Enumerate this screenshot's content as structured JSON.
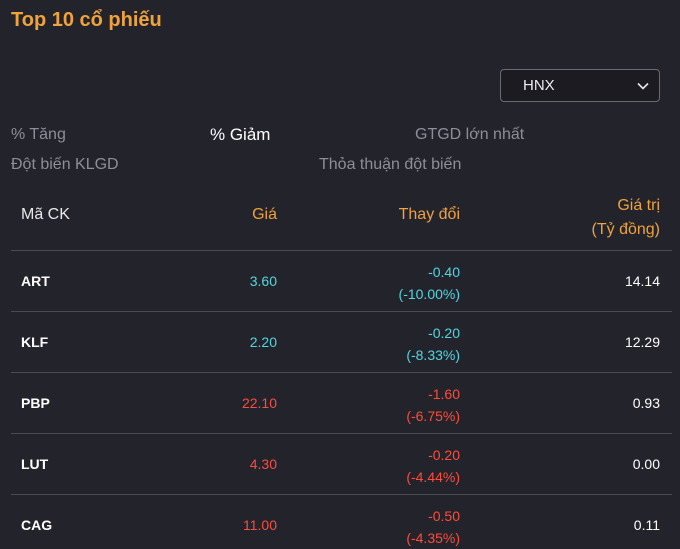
{
  "title": "Top 10 cổ phiếu",
  "exchange_select": {
    "value": "HNX"
  },
  "tabs": [
    "% Tăng",
    "% Giảm",
    "GTGD lớn nhất",
    "Đột biến KLGD",
    "Thỏa thuận đột biến"
  ],
  "active_tab": "% Giảm",
  "columns": {
    "symbol": "Mã CK",
    "price": "Giá",
    "change": "Thay đổi",
    "value_line1": "Giá trị",
    "value_line2": "(Tỷ đồng)"
  },
  "colors": {
    "accent": "#f0a23b",
    "reference": "#4fd8e2",
    "down": "#ff4c3b"
  },
  "rows": [
    {
      "symbol": "ART",
      "price": "3.60",
      "change": "-0.40",
      "change_pct": "(-10.00%)",
      "value": "14.14",
      "color": "cyan"
    },
    {
      "symbol": "KLF",
      "price": "2.20",
      "change": "-0.20",
      "change_pct": "(-8.33%)",
      "value": "12.29",
      "color": "cyan"
    },
    {
      "symbol": "PBP",
      "price": "22.10",
      "change": "-1.60",
      "change_pct": "(-6.75%)",
      "value": "0.93",
      "color": "red"
    },
    {
      "symbol": "LUT",
      "price": "4.30",
      "change": "-0.20",
      "change_pct": "(-4.44%)",
      "value": "0.00",
      "color": "red"
    },
    {
      "symbol": "CAG",
      "price": "11.00",
      "change": "-0.50",
      "change_pct": "(-4.35%)",
      "value": "0.11",
      "color": "red"
    }
  ]
}
